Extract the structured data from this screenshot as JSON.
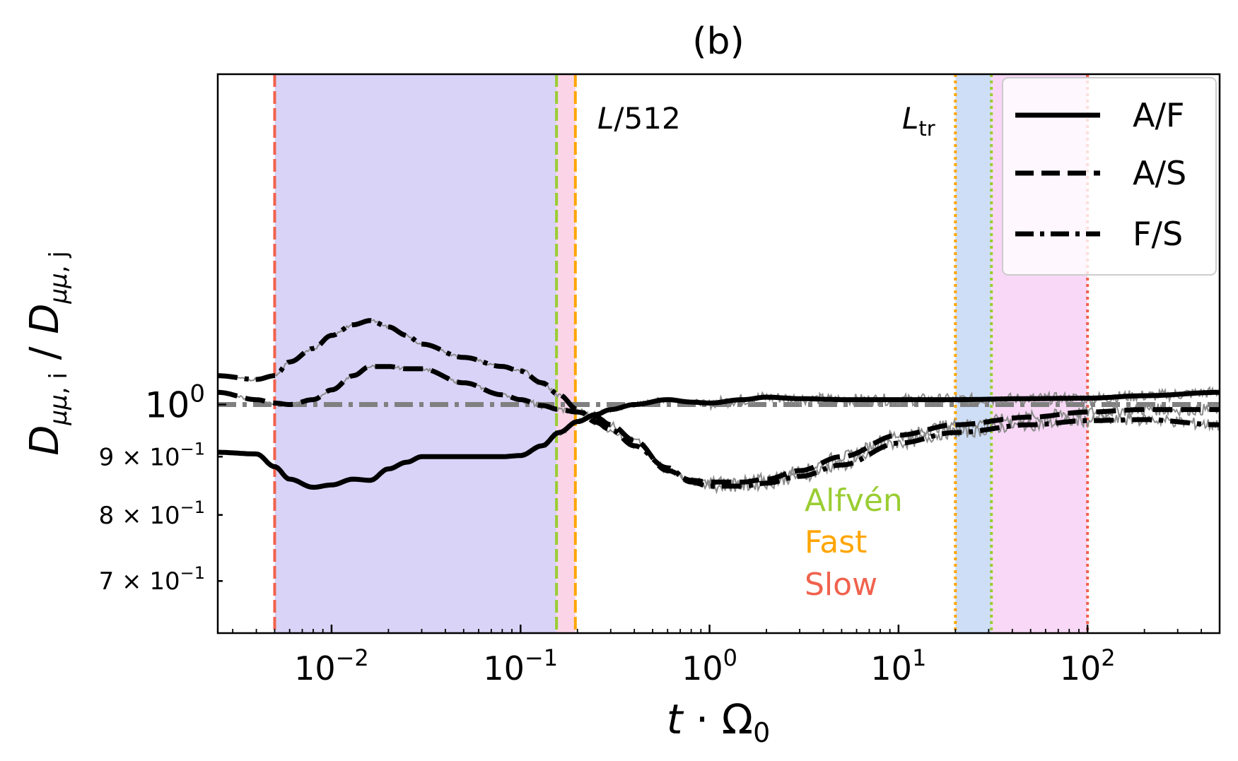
{
  "chart_data": {
    "type": "line",
    "title": "(b)",
    "xlabel": "t · Ω₀",
    "ylabel": "D_{μμ,i} / D_{μμ,j}",
    "xscale": "log",
    "yscale": "log",
    "xlim": [
      0.0025,
      500
    ],
    "ylim": [
      0.63,
      1.95
    ],
    "xticks": [
      {
        "value": 0.01,
        "base": "10",
        "exp": "−2"
      },
      {
        "value": 0.1,
        "base": "10",
        "exp": "−1"
      },
      {
        "value": 1,
        "base": "10",
        "exp": "0"
      },
      {
        "value": 10,
        "base": "10",
        "exp": "1"
      },
      {
        "value": 100,
        "base": "10",
        "exp": "2"
      }
    ],
    "yticks": [
      {
        "value": 1.0,
        "base": "10",
        "exp": "0",
        "prefix": ""
      },
      {
        "value": 0.9,
        "base": "10",
        "exp": "−1",
        "prefix": "9 × "
      },
      {
        "value": 0.8,
        "base": "10",
        "exp": "−1",
        "prefix": "8 × "
      },
      {
        "value": 0.7,
        "base": "10",
        "exp": "−1",
        "prefix": "7 × "
      }
    ],
    "reference_line": {
      "y": 1.0,
      "color": "#808080",
      "style": "dashdot"
    },
    "series": [
      {
        "name": "A/F",
        "style": "solid",
        "x": [
          0.0025,
          0.004,
          0.005,
          0.006,
          0.008,
          0.01,
          0.013,
          0.016,
          0.02,
          0.025,
          0.03,
          0.05,
          0.08,
          0.1,
          0.13,
          0.16,
          0.2,
          0.25,
          0.3,
          0.4,
          0.6,
          0.8,
          1,
          1.5,
          2,
          3,
          5,
          10,
          20,
          50,
          100,
          200,
          500
        ],
        "y": [
          0.908,
          0.905,
          0.882,
          0.86,
          0.846,
          0.85,
          0.86,
          0.858,
          0.878,
          0.89,
          0.9,
          0.9,
          0.9,
          0.902,
          0.92,
          0.945,
          0.966,
          0.98,
          0.99,
          1.0,
          1.01,
          1.005,
          1.003,
          1.01,
          1.015,
          1.012,
          1.01,
          1.01,
          1.01,
          1.012,
          1.013,
          1.018,
          1.025
        ]
      },
      {
        "name": "A/S",
        "style": "dashed",
        "x": [
          0.0025,
          0.004,
          0.005,
          0.006,
          0.008,
          0.01,
          0.013,
          0.016,
          0.02,
          0.025,
          0.03,
          0.05,
          0.08,
          0.1,
          0.13,
          0.16,
          0.2,
          0.25,
          0.3,
          0.4,
          0.6,
          0.8,
          1,
          1.5,
          2,
          3,
          5,
          10,
          20,
          50,
          100,
          200,
          500
        ],
        "y": [
          1.025,
          1.01,
          1.003,
          1.0,
          1.01,
          1.03,
          1.06,
          1.08,
          1.08,
          1.075,
          1.075,
          1.045,
          1.02,
          1.01,
          0.998,
          0.99,
          0.985,
          0.975,
          0.96,
          0.93,
          0.875,
          0.858,
          0.855,
          0.855,
          0.86,
          0.875,
          0.9,
          0.94,
          0.96,
          0.975,
          0.985,
          0.99,
          0.99
        ]
      },
      {
        "name": "F/S",
        "style": "dashdot",
        "x": [
          0.0025,
          0.004,
          0.005,
          0.006,
          0.008,
          0.01,
          0.013,
          0.016,
          0.02,
          0.025,
          0.03,
          0.05,
          0.08,
          0.1,
          0.13,
          0.16,
          0.2,
          0.25,
          0.3,
          0.4,
          0.6,
          0.8,
          1,
          1.5,
          2,
          3,
          5,
          10,
          20,
          50,
          100,
          200,
          500
        ],
        "y": [
          1.06,
          1.052,
          1.06,
          1.09,
          1.12,
          1.15,
          1.175,
          1.185,
          1.17,
          1.15,
          1.13,
          1.1,
          1.08,
          1.07,
          1.045,
          1.02,
          0.99,
          0.965,
          0.95,
          0.92,
          0.88,
          0.855,
          0.848,
          0.848,
          0.853,
          0.865,
          0.885,
          0.925,
          0.945,
          0.96,
          0.968,
          0.97,
          0.96
        ]
      }
    ],
    "shaded_regions": [
      {
        "x0": 0.005,
        "x1": 0.155,
        "color": "#d7d1f7"
      },
      {
        "x0": 0.155,
        "x1": 0.195,
        "color": "#fbd3e6"
      },
      {
        "x0": 20,
        "x1": 31,
        "color": "#cbdcf7"
      },
      {
        "x0": 31,
        "x1": 100,
        "color": "#f8d6f5"
      }
    ],
    "vertical_lines": [
      {
        "x": 0.005,
        "color": "#f0624d",
        "style": "dashed"
      },
      {
        "x": 0.155,
        "color": "#9acd32",
        "style": "dashed"
      },
      {
        "x": 0.195,
        "color": "#ffa500",
        "style": "dashed"
      },
      {
        "x": 20,
        "color": "#ffa500",
        "style": "dotted"
      },
      {
        "x": 31,
        "color": "#9acd32",
        "style": "dotted"
      },
      {
        "x": 100,
        "color": "#f0624d",
        "style": "dotted"
      }
    ],
    "annotations": [
      {
        "text": "L/512",
        "main": "L",
        "rest": "/512"
      },
      {
        "text": "L_tr",
        "main": "L",
        "sub": "tr"
      }
    ],
    "color_key": [
      {
        "label": "Alfvén",
        "color": "#9acd32"
      },
      {
        "label": "Fast",
        "color": "#ffa500"
      },
      {
        "label": "Slow",
        "color": "#f0624d"
      }
    ],
    "legend": {
      "position": "top-right"
    }
  }
}
